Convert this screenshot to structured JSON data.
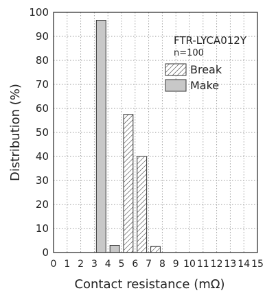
{
  "chart_data": {
    "type": "bar",
    "model": "FTR-LYCA012Y",
    "sample": "n=100",
    "xlabel": "Contact resistance (mΩ)",
    "ylabel": "Distribution (%)",
    "xlim": [
      0,
      15
    ],
    "ylim": [
      0,
      100
    ],
    "x_ticks": [
      "0",
      "1",
      "2",
      "3",
      "4",
      "5",
      "6",
      "7",
      "8",
      "9",
      "10",
      "11",
      "12",
      "13",
      "14",
      "15"
    ],
    "y_ticks": [
      "0",
      "10",
      "20",
      "30",
      "40",
      "50",
      "60",
      "70",
      "80",
      "90",
      "100"
    ],
    "grid": true,
    "legend_position": "top-right",
    "series": [
      {
        "name": "Break",
        "pattern": "hatched",
        "bins": [
          {
            "x0": 5,
            "x1": 6,
            "value": 57.5
          },
          {
            "x0": 6,
            "x1": 7,
            "value": 40
          },
          {
            "x0": 7,
            "x1": 8,
            "value": 2.5
          }
        ]
      },
      {
        "name": "Make",
        "color": "#c8c8c8",
        "bins": [
          {
            "x0": 3,
            "x1": 4,
            "value": 96.7
          },
          {
            "x0": 4,
            "x1": 5,
            "value": 3
          }
        ]
      }
    ]
  }
}
